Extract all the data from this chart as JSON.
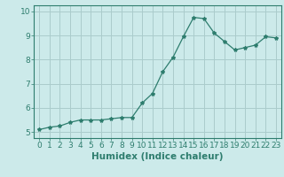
{
  "xlabel": "Humidex (Indice chaleur)",
  "x": [
    0,
    1,
    2,
    3,
    4,
    5,
    6,
    7,
    8,
    9,
    10,
    11,
    12,
    13,
    14,
    15,
    16,
    17,
    18,
    19,
    20,
    21,
    22,
    23
  ],
  "y": [
    5.1,
    5.2,
    5.25,
    5.4,
    5.5,
    5.5,
    5.5,
    5.55,
    5.6,
    5.6,
    6.2,
    6.6,
    7.5,
    8.1,
    8.95,
    9.75,
    9.7,
    9.1,
    8.75,
    8.4,
    8.5,
    8.6,
    8.95,
    8.9
  ],
  "line_color": "#2e7d6e",
  "bg_color": "#cceaea",
  "grid_color": "#aacccc",
  "ylim": [
    4.75,
    10.25
  ],
  "xlim": [
    -0.5,
    23.5
  ],
  "yticks": [
    5,
    6,
    7,
    8,
    9,
    10
  ],
  "xticks": [
    0,
    1,
    2,
    3,
    4,
    5,
    6,
    7,
    8,
    9,
    10,
    11,
    12,
    13,
    14,
    15,
    16,
    17,
    18,
    19,
    20,
    21,
    22,
    23
  ],
  "label_fontsize": 7.5,
  "tick_fontsize": 6.5
}
